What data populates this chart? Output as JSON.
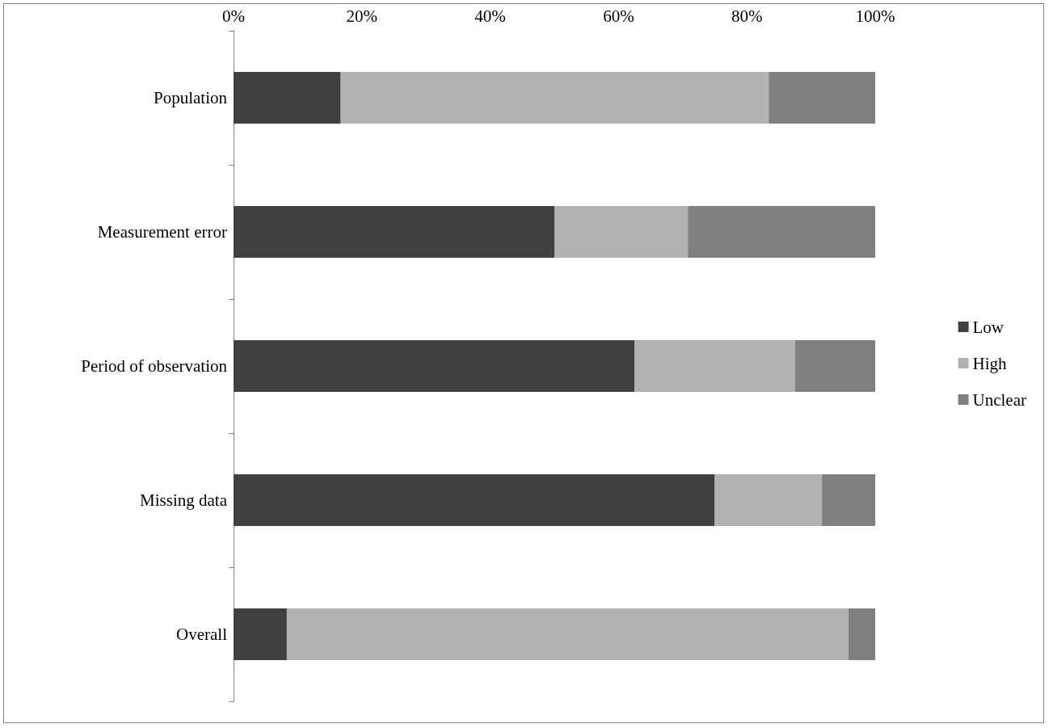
{
  "chart_data": {
    "type": "bar",
    "orientation": "horizontal",
    "stacked": true,
    "categories": [
      "Population",
      "Measurement error",
      "Period of observation",
      "Missing data",
      "Overall"
    ],
    "series": [
      {
        "name": "Low",
        "color": "#404040",
        "values": [
          16.7,
          50,
          62.5,
          75,
          8.3
        ]
      },
      {
        "name": "High",
        "color": "#b2b2b2",
        "values": [
          66.7,
          20.8,
          25,
          16.7,
          87.5
        ]
      },
      {
        "name": "Unclear",
        "color": "#808080",
        "values": [
          16.6,
          29.2,
          12.5,
          8.3,
          4.2
        ]
      }
    ],
    "xlim": [
      0,
      100
    ],
    "xticks": [
      {
        "value": 0,
        "label": "0%"
      },
      {
        "value": 20,
        "label": "20%"
      },
      {
        "value": 40,
        "label": "40%"
      },
      {
        "value": 60,
        "label": "60%"
      },
      {
        "value": 80,
        "label": "80%"
      },
      {
        "value": 100,
        "label": "100%"
      }
    ],
    "grid": false,
    "legend": "right"
  }
}
